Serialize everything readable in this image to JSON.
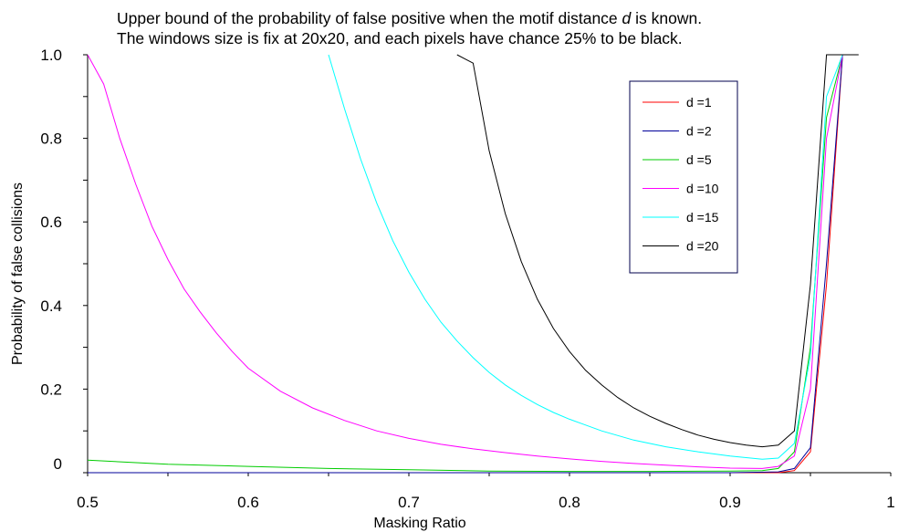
{
  "chart_data": {
    "type": "line",
    "title_lines": [
      [
        "Upper bound of the probability of false positive when the motif distance ",
        "d",
        " is known."
      ],
      [
        "The windows size is fix at 20x20, and each pixels have chance 25% to be black.",
        "",
        ""
      ]
    ],
    "xlabel": "Masking Ratio",
    "ylabel": "Probability of false collisions",
    "xlim": [
      0.5,
      1.0
    ],
    "ylim": [
      0,
      1.0
    ],
    "x_ticks": [
      {
        "value": 0.5,
        "label": "0.5"
      },
      {
        "value": 0.6,
        "label": "0.6"
      },
      {
        "value": 0.7,
        "label": "0.7"
      },
      {
        "value": 0.8,
        "label": "0.8"
      },
      {
        "value": 0.9,
        "label": "0.9"
      },
      {
        "value": 1.0,
        "label": "1"
      }
    ],
    "y_ticks": [
      {
        "value": 0.0,
        "label": "0"
      },
      {
        "value": 0.2,
        "label": "0.2"
      },
      {
        "value": 0.4,
        "label": "0.4"
      },
      {
        "value": 0.6,
        "label": "0.6"
      },
      {
        "value": 0.8,
        "label": "0.8"
      },
      {
        "value": 1.0,
        "label": "1.0"
      }
    ],
    "legend_position": "top-right",
    "grid": false,
    "series": [
      {
        "name": "d =1",
        "color": "#ff0000",
        "points": [
          [
            0.5,
            0
          ],
          [
            0.6,
            0
          ],
          [
            0.7,
            0
          ],
          [
            0.8,
            0
          ],
          [
            0.9,
            0
          ],
          [
            0.93,
            0.0
          ],
          [
            0.94,
            0.005
          ],
          [
            0.95,
            0.05
          ],
          [
            0.96,
            0.45
          ],
          [
            0.97,
            1.0
          ]
        ]
      },
      {
        "name": "d =2",
        "color": "#000099",
        "points": [
          [
            0.5,
            0
          ],
          [
            0.6,
            0
          ],
          [
            0.7,
            0
          ],
          [
            0.8,
            0
          ],
          [
            0.9,
            0
          ],
          [
            0.93,
            0.002
          ],
          [
            0.94,
            0.01
          ],
          [
            0.95,
            0.06
          ],
          [
            0.96,
            0.5
          ],
          [
            0.97,
            1.0
          ]
        ]
      },
      {
        "name": "d =5",
        "color": "#00cc00",
        "points": [
          [
            0.5,
            0.03
          ],
          [
            0.55,
            0.02
          ],
          [
            0.6,
            0.015
          ],
          [
            0.65,
            0.01
          ],
          [
            0.7,
            0.007
          ],
          [
            0.75,
            0.004
          ],
          [
            0.8,
            0.003
          ],
          [
            0.85,
            0.003
          ],
          [
            0.9,
            0.004
          ],
          [
            0.92,
            0.005
          ],
          [
            0.93,
            0.01
          ],
          [
            0.94,
            0.05
          ],
          [
            0.95,
            0.3
          ],
          [
            0.96,
            0.85
          ],
          [
            0.97,
            1.0
          ]
        ]
      },
      {
        "name": "d =10",
        "color": "#ff00ff",
        "points": [
          [
            0.5,
            1.0
          ],
          [
            0.51,
            0.93
          ],
          [
            0.52,
            0.8
          ],
          [
            0.53,
            0.69
          ],
          [
            0.54,
            0.59
          ],
          [
            0.55,
            0.51
          ],
          [
            0.56,
            0.44
          ],
          [
            0.57,
            0.385
          ],
          [
            0.58,
            0.335
          ],
          [
            0.59,
            0.29
          ],
          [
            0.6,
            0.25
          ],
          [
            0.62,
            0.195
          ],
          [
            0.64,
            0.155
          ],
          [
            0.66,
            0.125
          ],
          [
            0.68,
            0.1
          ],
          [
            0.7,
            0.082
          ],
          [
            0.72,
            0.068
          ],
          [
            0.74,
            0.057
          ],
          [
            0.76,
            0.048
          ],
          [
            0.78,
            0.04
          ],
          [
            0.8,
            0.033
          ],
          [
            0.82,
            0.027
          ],
          [
            0.84,
            0.022
          ],
          [
            0.86,
            0.018
          ],
          [
            0.88,
            0.014
          ],
          [
            0.9,
            0.011
          ],
          [
            0.92,
            0.01
          ],
          [
            0.93,
            0.015
          ],
          [
            0.94,
            0.04
          ],
          [
            0.95,
            0.2
          ],
          [
            0.96,
            0.8
          ],
          [
            0.97,
            1.0
          ]
        ]
      },
      {
        "name": "d =15",
        "color": "#00ffff",
        "points": [
          [
            0.65,
            1.0
          ],
          [
            0.66,
            0.87
          ],
          [
            0.67,
            0.75
          ],
          [
            0.68,
            0.645
          ],
          [
            0.69,
            0.555
          ],
          [
            0.7,
            0.48
          ],
          [
            0.71,
            0.415
          ],
          [
            0.72,
            0.36
          ],
          [
            0.73,
            0.315
          ],
          [
            0.74,
            0.275
          ],
          [
            0.75,
            0.24
          ],
          [
            0.76,
            0.21
          ],
          [
            0.77,
            0.185
          ],
          [
            0.78,
            0.163
          ],
          [
            0.79,
            0.144
          ],
          [
            0.8,
            0.128
          ],
          [
            0.82,
            0.1
          ],
          [
            0.84,
            0.078
          ],
          [
            0.86,
            0.062
          ],
          [
            0.88,
            0.05
          ],
          [
            0.9,
            0.04
          ],
          [
            0.92,
            0.032
          ],
          [
            0.93,
            0.035
          ],
          [
            0.94,
            0.07
          ],
          [
            0.95,
            0.28
          ],
          [
            0.96,
            0.9
          ],
          [
            0.97,
            1.0
          ]
        ]
      },
      {
        "name": "d =20",
        "color": "#000000",
        "points": [
          [
            0.73,
            1.0
          ],
          [
            0.74,
            0.98
          ],
          [
            0.75,
            0.77
          ],
          [
            0.76,
            0.62
          ],
          [
            0.77,
            0.505
          ],
          [
            0.78,
            0.415
          ],
          [
            0.79,
            0.345
          ],
          [
            0.8,
            0.29
          ],
          [
            0.81,
            0.245
          ],
          [
            0.82,
            0.21
          ],
          [
            0.83,
            0.18
          ],
          [
            0.84,
            0.155
          ],
          [
            0.85,
            0.135
          ],
          [
            0.86,
            0.118
          ],
          [
            0.87,
            0.103
          ],
          [
            0.88,
            0.09
          ],
          [
            0.89,
            0.08
          ],
          [
            0.9,
            0.072
          ],
          [
            0.91,
            0.066
          ],
          [
            0.92,
            0.062
          ],
          [
            0.93,
            0.066
          ],
          [
            0.94,
            0.1
          ],
          [
            0.95,
            0.45
          ],
          [
            0.96,
            1.0
          ],
          [
            0.98,
            1.0
          ]
        ]
      }
    ]
  }
}
